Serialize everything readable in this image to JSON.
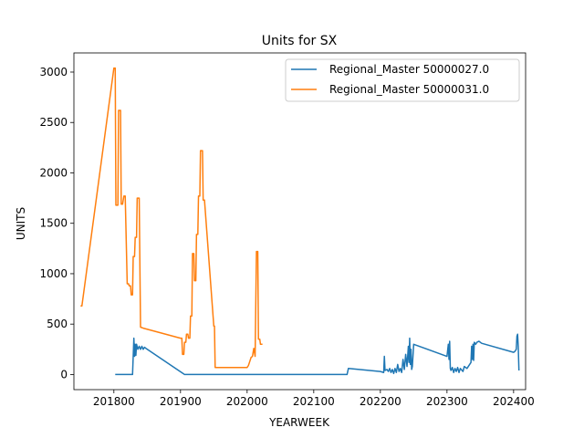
{
  "chart_data": {
    "type": "line",
    "title": "Units for SX",
    "xlabel": "YEARWEEK",
    "ylabel": "UNITS",
    "xlim": [
      201740,
      202418
    ],
    "ylim": [
      -150,
      3190
    ],
    "xticks": [
      201800,
      201900,
      202000,
      202100,
      202200,
      202300,
      202400
    ],
    "xtick_labels": [
      "201800",
      "201900",
      "202000",
      "202100",
      "202200",
      "202300",
      "202400"
    ],
    "yticks": [
      0,
      500,
      1000,
      1500,
      2000,
      2500,
      3000
    ],
    "ytick_labels": [
      "0",
      "500",
      "1000",
      "1500",
      "2000",
      "2500",
      "3000"
    ],
    "grid": false,
    "legend_position": "top-right",
    "series": [
      {
        "name": "Regional_Master 50000027.0",
        "color": "#1f77b4",
        "points": [
          [
            201802,
            0
          ],
          [
            201828,
            0
          ],
          [
            201830,
            360
          ],
          [
            201831,
            180
          ],
          [
            201832,
            300
          ],
          [
            201833,
            190
          ],
          [
            201834,
            300
          ],
          [
            201836,
            250
          ],
          [
            201838,
            280
          ],
          [
            201840,
            250
          ],
          [
            201842,
            280
          ],
          [
            201844,
            250
          ],
          [
            201846,
            270
          ],
          [
            201848,
            260
          ],
          [
            201904,
            10
          ],
          [
            201906,
            0
          ],
          [
            202000,
            0
          ],
          [
            202100,
            0
          ],
          [
            202150,
            0
          ],
          [
            202152,
            60
          ],
          [
            202200,
            30
          ],
          [
            202205,
            20
          ],
          [
            202206,
            180
          ],
          [
            202207,
            40
          ],
          [
            202210,
            50
          ],
          [
            202212,
            30
          ],
          [
            202214,
            60
          ],
          [
            202216,
            20
          ],
          [
            202218,
            50
          ],
          [
            202220,
            10
          ],
          [
            202222,
            60
          ],
          [
            202224,
            20
          ],
          [
            202226,
            100
          ],
          [
            202228,
            30
          ],
          [
            202230,
            60
          ],
          [
            202232,
            20
          ],
          [
            202234,
            150
          ],
          [
            202236,
            50
          ],
          [
            202238,
            200
          ],
          [
            202240,
            80
          ],
          [
            202242,
            280
          ],
          [
            202243,
            120
          ],
          [
            202244,
            360
          ],
          [
            202245,
            100
          ],
          [
            202246,
            250
          ],
          [
            202247,
            50
          ],
          [
            202248,
            80
          ],
          [
            202250,
            300
          ],
          [
            202300,
            180
          ],
          [
            202302,
            300
          ],
          [
            202303,
            150
          ],
          [
            202304,
            330
          ],
          [
            202305,
            60
          ],
          [
            202306,
            40
          ],
          [
            202308,
            70
          ],
          [
            202310,
            20
          ],
          [
            202312,
            60
          ],
          [
            202314,
            30
          ],
          [
            202316,
            70
          ],
          [
            202318,
            20
          ],
          [
            202320,
            60
          ],
          [
            202324,
            30
          ],
          [
            202326,
            80
          ],
          [
            202330,
            60
          ],
          [
            202336,
            120
          ],
          [
            202337,
            280
          ],
          [
            202338,
            150
          ],
          [
            202339,
            300
          ],
          [
            202340,
            140
          ],
          [
            202341,
            320
          ],
          [
            202343,
            300
          ],
          [
            202345,
            320
          ],
          [
            202348,
            330
          ],
          [
            202352,
            310
          ],
          [
            202400,
            220
          ],
          [
            202402,
            230
          ],
          [
            202404,
            250
          ],
          [
            202405,
            380
          ],
          [
            202406,
            400
          ],
          [
            202407,
            270
          ],
          [
            202408,
            40
          ]
        ]
      },
      {
        "name": "Regional_Master 50000031.0",
        "color": "#ff7f0e",
        "points": [
          [
            201750,
            680
          ],
          [
            201752,
            680
          ],
          [
            201800,
            3040
          ],
          [
            201802,
            3040
          ],
          [
            201803,
            1680
          ],
          [
            201806,
            1680
          ],
          [
            201807,
            2620
          ],
          [
            201808,
            2620
          ],
          [
            201810,
            2620
          ],
          [
            201811,
            1690
          ],
          [
            201813,
            1690
          ],
          [
            201815,
            1770
          ],
          [
            201817,
            1770
          ],
          [
            201820,
            900
          ],
          [
            201822,
            900
          ],
          [
            201823,
            880
          ],
          [
            201825,
            880
          ],
          [
            201826,
            790
          ],
          [
            201828,
            790
          ],
          [
            201829,
            1170
          ],
          [
            201831,
            1170
          ],
          [
            201832,
            1360
          ],
          [
            201834,
            1360
          ],
          [
            201835,
            1750
          ],
          [
            201837,
            1750
          ],
          [
            201838,
            1750
          ],
          [
            201840,
            470
          ],
          [
            201844,
            460
          ],
          [
            201900,
            360
          ],
          [
            201902,
            360
          ],
          [
            201903,
            200
          ],
          [
            201905,
            200
          ],
          [
            201906,
            320
          ],
          [
            201908,
            320
          ],
          [
            201909,
            400
          ],
          [
            201911,
            400
          ],
          [
            201912,
            360
          ],
          [
            201914,
            360
          ],
          [
            201915,
            580
          ],
          [
            201917,
            580
          ],
          [
            201918,
            1200
          ],
          [
            201920,
            1200
          ],
          [
            201921,
            930
          ],
          [
            201923,
            930
          ],
          [
            201924,
            1390
          ],
          [
            201926,
            1390
          ],
          [
            201927,
            1770
          ],
          [
            201929,
            1770
          ],
          [
            201930,
            2220
          ],
          [
            201933,
            2220
          ],
          [
            201934,
            1730
          ],
          [
            201936,
            1730
          ],
          [
            201950,
            480
          ],
          [
            201951,
            480
          ],
          [
            201952,
            70
          ],
          [
            202000,
            70
          ],
          [
            202002,
            90
          ],
          [
            202004,
            130
          ],
          [
            202006,
            170
          ],
          [
            202008,
            180
          ],
          [
            202010,
            260
          ],
          [
            202012,
            180
          ],
          [
            202014,
            1220
          ],
          [
            202016,
            1220
          ],
          [
            202017,
            350
          ],
          [
            202019,
            350
          ],
          [
            202020,
            300
          ],
          [
            202023,
            300
          ]
        ]
      }
    ]
  }
}
